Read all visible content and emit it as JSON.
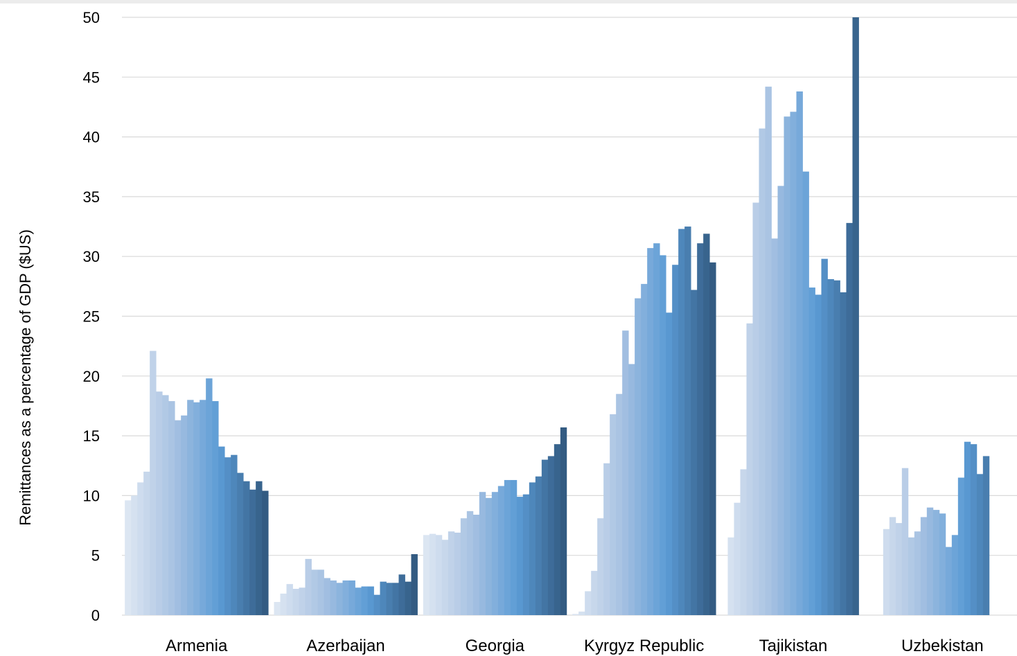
{
  "chart_data": {
    "type": "bar",
    "title": "",
    "xlabel": "",
    "ylabel": "Remittances as a percentage of GDP ($US)",
    "ylim": [
      0,
      50
    ],
    "yticks": [
      "0",
      "5",
      "10",
      "15",
      "20",
      "25",
      "30",
      "35",
      "40",
      "45",
      "50"
    ],
    "grid": true,
    "legend": "none",
    "categories": [
      "Armenia",
      "Azerbaijan",
      "Georgia",
      "Kyrgyz Republic",
      "Tajikistan",
      "Uzbekistan"
    ],
    "color_ramp": [
      "#dce6f2",
      "#a8c2e2",
      "#5b9bd5",
      "#335b82"
    ],
    "values": [
      [
        9.6,
        10.0,
        11.1,
        12.0,
        22.1,
        18.7,
        18.4,
        17.9,
        16.3,
        16.7,
        18.0,
        17.8,
        18.0,
        19.8,
        17.9,
        14.1,
        13.2,
        13.4,
        11.9,
        11.2,
        10.5,
        11.2,
        10.4
      ],
      [
        1.1,
        1.8,
        2.6,
        2.2,
        2.3,
        4.7,
        3.8,
        3.8,
        3.1,
        2.9,
        2.7,
        2.9,
        2.9,
        2.3,
        2.4,
        2.4,
        1.7,
        2.8,
        2.7,
        2.7,
        3.4,
        2.8,
        5.1
      ],
      [
        6.7,
        6.8,
        6.7,
        6.3,
        7.0,
        6.9,
        8.1,
        8.7,
        8.4,
        10.3,
        9.8,
        10.3,
        10.8,
        11.3,
        11.3,
        9.9,
        10.1,
        11.1,
        11.6,
        13.0,
        13.3,
        14.3,
        15.7
      ],
      [
        0.1,
        0.3,
        2.0,
        3.7,
        8.1,
        12.7,
        16.8,
        18.5,
        23.8,
        21.0,
        26.5,
        27.7,
        30.7,
        31.1,
        30.1,
        25.3,
        29.3,
        32.3,
        32.5,
        27.2,
        31.1,
        31.9,
        29.5
      ],
      [
        null,
        6.5,
        9.4,
        12.2,
        24.4,
        34.5,
        40.7,
        44.2,
        31.5,
        35.9,
        41.7,
        42.1,
        43.8,
        37.1,
        27.4,
        26.8,
        29.8,
        28.1,
        28.0,
        27.0,
        32.8,
        50.0,
        null
      ],
      [
        null,
        null,
        7.2,
        8.2,
        7.7,
        12.3,
        6.5,
        7.0,
        8.2,
        9.0,
        8.8,
        8.5,
        5.7,
        6.7,
        11.5,
        14.5,
        14.3,
        11.8,
        13.3,
        null,
        null,
        null,
        null
      ]
    ]
  }
}
